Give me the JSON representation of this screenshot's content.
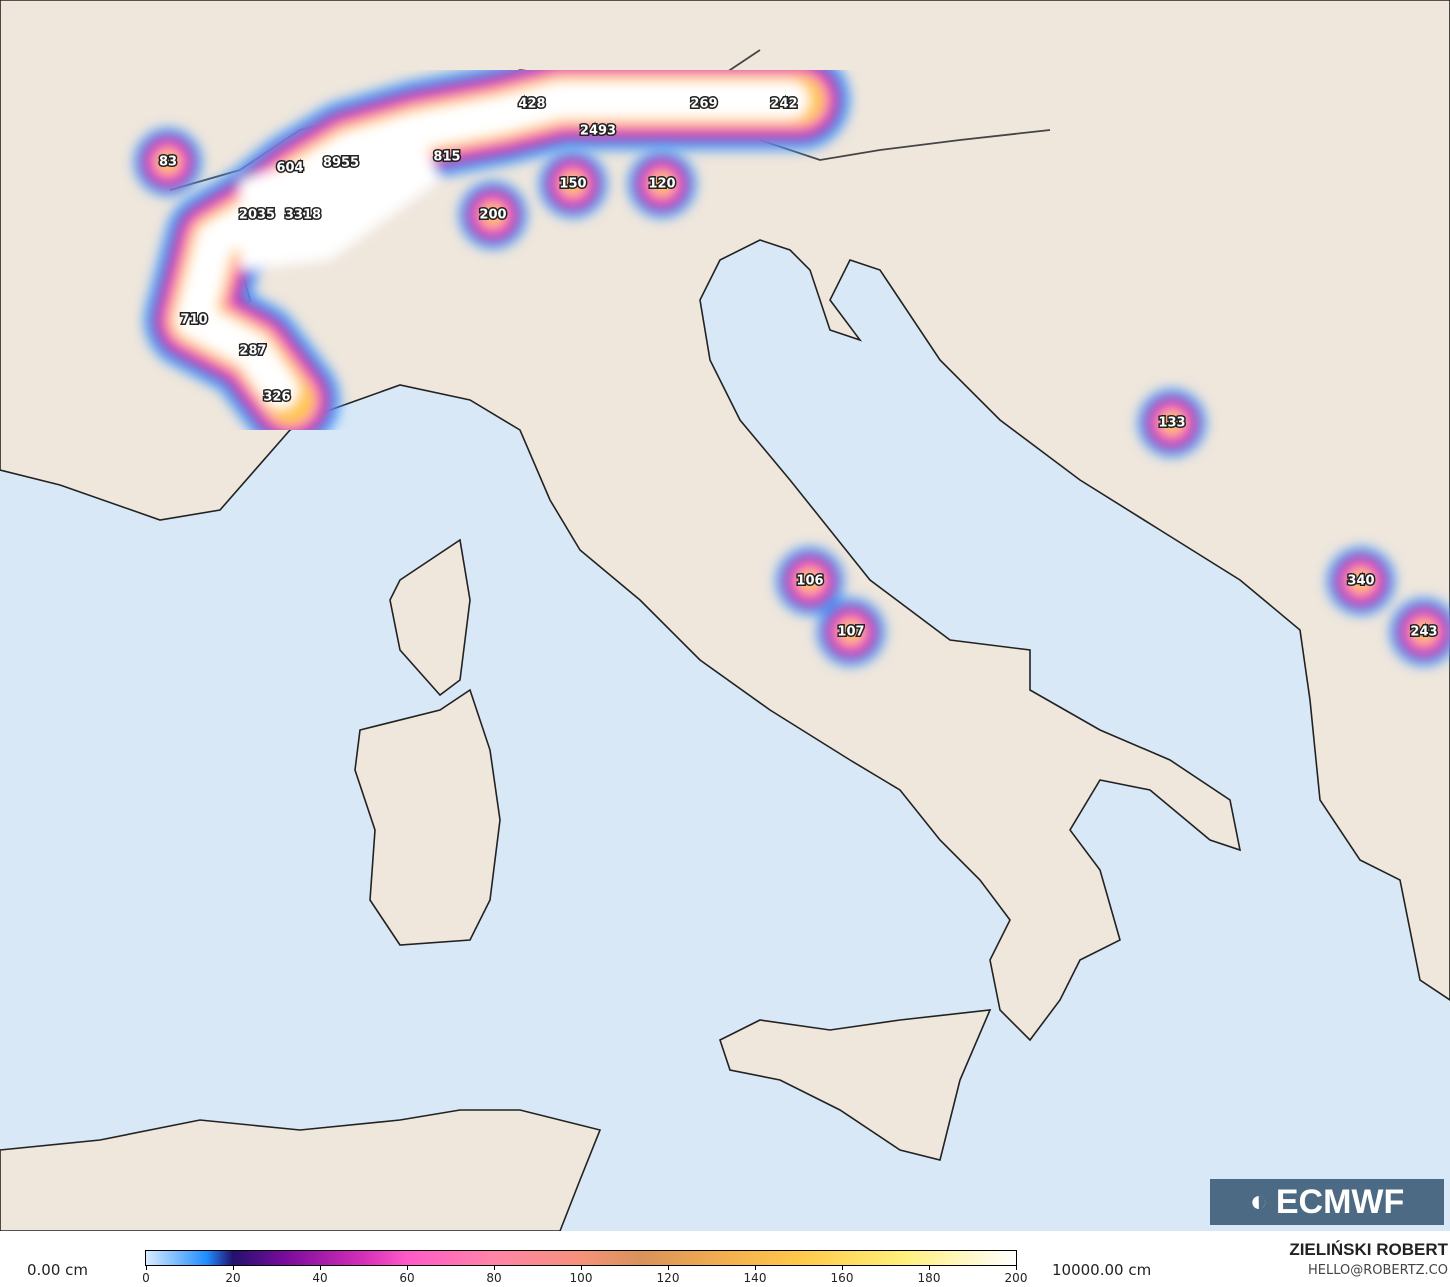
{
  "map": {
    "colors": {
      "sea": "#d9e8f7",
      "land": "#efe6dc",
      "border": "#222222"
    },
    "snow_labels": [
      {
        "v": "83",
        "lon_lat_hint": "Jura"
      },
      {
        "v": "604"
      },
      {
        "v": "8955"
      },
      {
        "v": "2035"
      },
      {
        "v": "3318"
      },
      {
        "v": "815"
      },
      {
        "v": "428"
      },
      {
        "v": "2493"
      },
      {
        "v": "269"
      },
      {
        "v": "242"
      },
      {
        "v": "150"
      },
      {
        "v": "120"
      },
      {
        "v": "200"
      },
      {
        "v": "710"
      },
      {
        "v": "287"
      },
      {
        "v": "326"
      },
      {
        "v": "133"
      },
      {
        "v": "106"
      },
      {
        "v": "107"
      },
      {
        "v": "340"
      },
      {
        "v": "243"
      }
    ]
  },
  "logo": {
    "text": "ECMWF"
  },
  "legend": {
    "min_label": "0.00 cm",
    "max_label": "10000.00 cm",
    "ticks": [
      "0",
      "20",
      "40",
      "60",
      "80",
      "100",
      "120",
      "140",
      "160",
      "180",
      "200"
    ],
    "colormap": [
      "#d8ecff",
      "#1f8cff",
      "#23116e",
      "#7a0b9c",
      "#d52fb9",
      "#ff5ac8",
      "#ff85a8",
      "#f5927a",
      "#d9925a",
      "#ffc84a",
      "#fff07a",
      "#ffffff"
    ]
  },
  "credit": {
    "author": "ZIELIŃSKI ROBERT",
    "email": "HELLO@ROBERTZ.CO"
  }
}
